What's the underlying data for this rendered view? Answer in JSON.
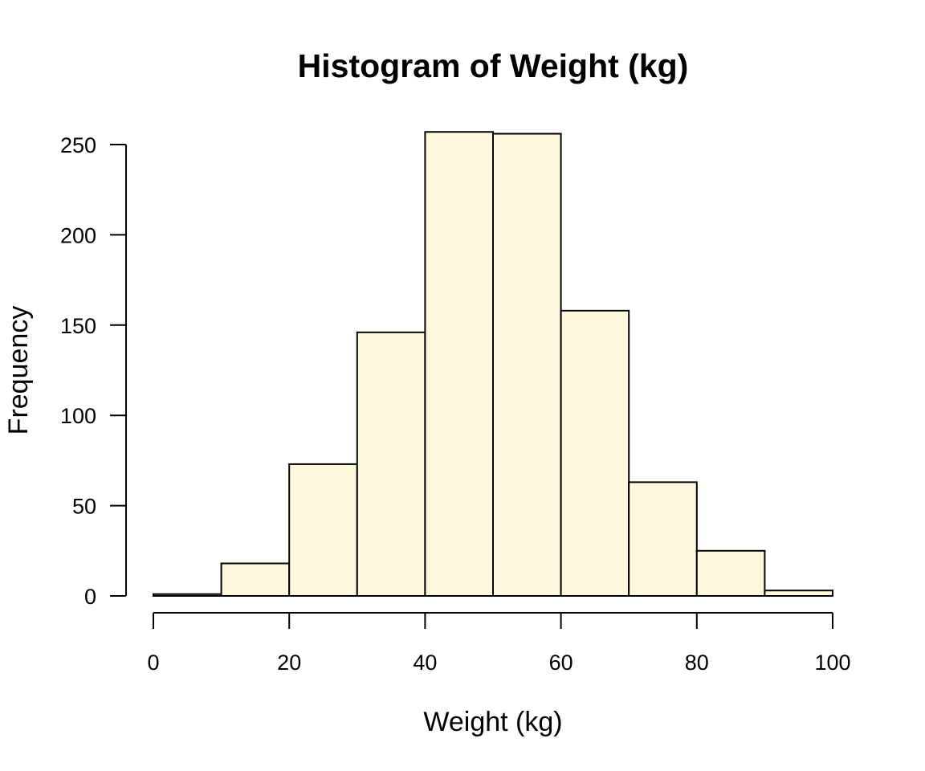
{
  "chart_data": {
    "type": "bar",
    "title": "Histogram of Weight (kg)",
    "xlabel": "Weight (kg)",
    "ylabel": "Frequency",
    "bins": [
      [
        0,
        10
      ],
      [
        10,
        20
      ],
      [
        20,
        30
      ],
      [
        30,
        40
      ],
      [
        40,
        50
      ],
      [
        50,
        60
      ],
      [
        60,
        70
      ],
      [
        70,
        80
      ],
      [
        80,
        90
      ],
      [
        90,
        100
      ]
    ],
    "values": [
      1,
      18,
      73,
      146,
      257,
      256,
      158,
      63,
      25,
      3
    ],
    "xlim": [
      0,
      100
    ],
    "ylim": [
      0,
      250
    ],
    "xticks": [
      0,
      20,
      40,
      60,
      80,
      100
    ],
    "yticks": [
      0,
      50,
      100,
      150,
      200,
      250
    ],
    "grid": false,
    "bar_color": "#FFF8DC",
    "edge_color": "#000000"
  }
}
